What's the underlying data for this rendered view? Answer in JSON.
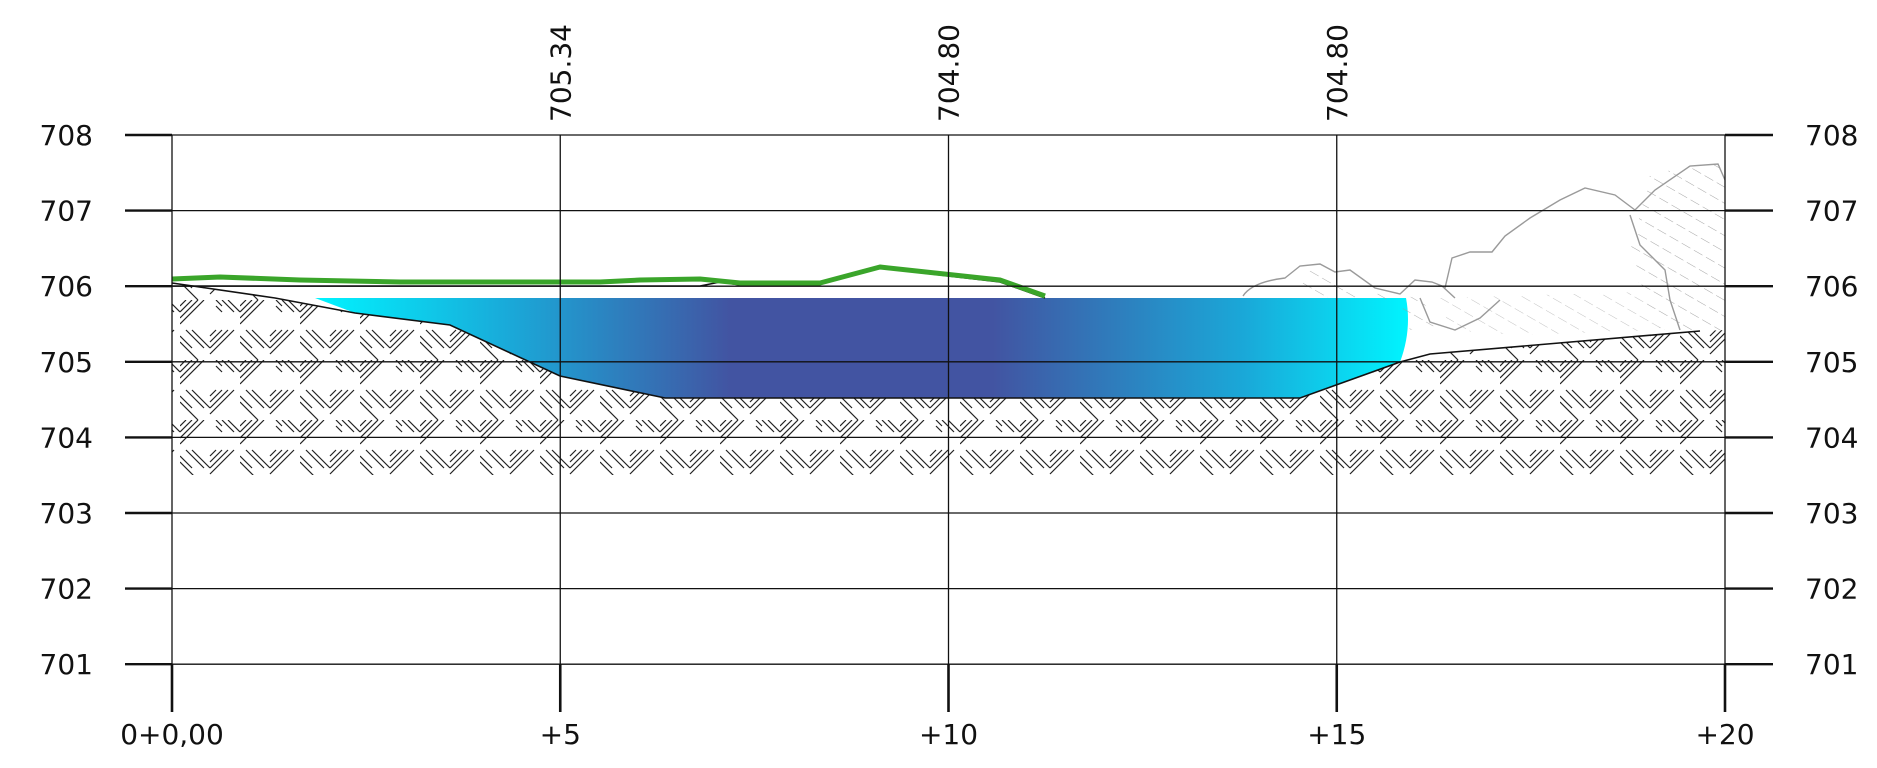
{
  "profile": {
    "y_axis": {
      "ticks": [
        708,
        707,
        706,
        705,
        704,
        703,
        702,
        701
      ],
      "labels": [
        "708",
        "707",
        "706",
        "705",
        "704",
        "703",
        "702",
        "701"
      ]
    },
    "x_axis": {
      "stations": [
        0,
        5,
        10,
        15,
        20
      ],
      "labels": [
        "0+0,00",
        "+5",
        "+10",
        "+15",
        "+20"
      ]
    },
    "top_labels": [
      {
        "station": 5,
        "text": "705.34"
      },
      {
        "station": 10,
        "text": "704.80"
      },
      {
        "station": 15,
        "text": "704.80"
      }
    ],
    "water_level": 705.85,
    "colors": {
      "grass": "#3aa52a",
      "water_edge": "#00f4ff",
      "water_center": "#4254a2",
      "hatch": "#222222",
      "rock": "#9a9a9a",
      "grid": "#111111"
    }
  }
}
